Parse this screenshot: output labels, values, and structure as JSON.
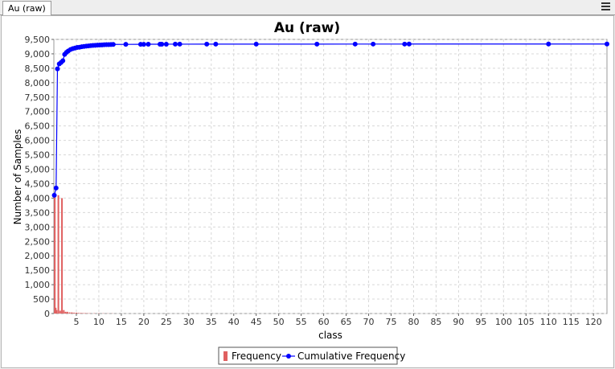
{
  "tab": {
    "label": "Au (raw)"
  },
  "chart_data": {
    "type": "bar+line",
    "title": "Au (raw)",
    "xlabel": "class",
    "ylabel": "Number of Samples",
    "xlim": [
      0,
      123
    ],
    "ylim": [
      0,
      9500
    ],
    "x_ticks": [
      5,
      10,
      15,
      20,
      25,
      30,
      35,
      40,
      45,
      50,
      55,
      60,
      65,
      70,
      75,
      80,
      85,
      90,
      95,
      100,
      105,
      110,
      115,
      120
    ],
    "y_ticks": [
      0,
      500,
      1000,
      1500,
      2000,
      2500,
      3000,
      3500,
      4000,
      4500,
      5000,
      5500,
      6000,
      6500,
      7000,
      7500,
      8000,
      8500,
      9000,
      9500
    ],
    "grid": true,
    "legend_position": "bottom",
    "series": [
      {
        "name": "Frequency",
        "kind": "bar",
        "color": "#e06060",
        "x": [
          0.2,
          0.4,
          0.6,
          1.0,
          1.4,
          1.8,
          2.2,
          2.6,
          3.0,
          3.5,
          4.0,
          4.5,
          5.0,
          5.5,
          6.0,
          6.5,
          7.0,
          7.5,
          8.0,
          9.0,
          10.0,
          11.0,
          12.0,
          13.0
        ],
        "y": [
          4100,
          200,
          120,
          4100,
          100,
          4000,
          120,
          60,
          60,
          40,
          40,
          30,
          30,
          20,
          20,
          15,
          15,
          10,
          10,
          10,
          10,
          8,
          5,
          5
        ]
      },
      {
        "name": "Cumulative Frequency",
        "kind": "line",
        "color": "#0000ff",
        "x": [
          0.1,
          0.5,
          0.8,
          1.2,
          1.6,
          2.0,
          2.4,
          2.8,
          3.2,
          3.7,
          4.2,
          4.7,
          5.2,
          5.7,
          6.2,
          6.7,
          7.2,
          7.7,
          8.2,
          8.7,
          9.2,
          9.7,
          10.2,
          10.7,
          11.2,
          11.7,
          12.2,
          12.7,
          13.2,
          16.0,
          19.3,
          20.0,
          21.0,
          23.6,
          24.0,
          25.0,
          27.0,
          28.0,
          34.0,
          36.0,
          45.0,
          58.5,
          67.0,
          71.0,
          78.0,
          79.0,
          110.0,
          123.0
        ],
        "y": [
          4100,
          4350,
          8480,
          8650,
          8700,
          8760,
          8980,
          9050,
          9100,
          9150,
          9180,
          9200,
          9220,
          9230,
          9245,
          9255,
          9265,
          9275,
          9285,
          9290,
          9295,
          9300,
          9305,
          9310,
          9315,
          9318,
          9320,
          9322,
          9325,
          9328,
          9330,
          9331,
          9332,
          9333,
          9334,
          9334,
          9335,
          9335,
          9336,
          9336,
          9337,
          9337,
          9338,
          9338,
          9338,
          9339,
          9339,
          9340
        ]
      }
    ]
  }
}
